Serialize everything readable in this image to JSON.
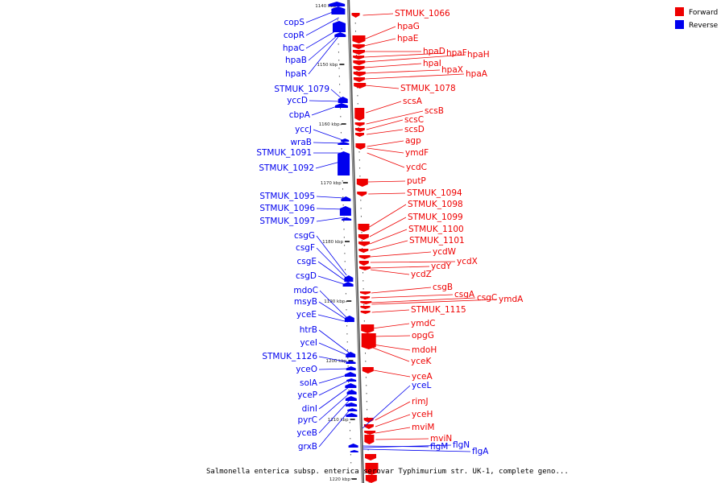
{
  "caption": "Salmonella enterica subsp. enterica serovar Typhimurium str. UK-1, complete geno...",
  "colors": {
    "forward": "#ee0000",
    "reverse": "#0000ee",
    "axis": "#888888"
  },
  "legend": [
    {
      "key": "forward",
      "label": "Forward"
    },
    {
      "key": "reverse",
      "label": "Reverse"
    }
  ],
  "kbp_ticks": [
    "1140 kbp",
    "1150 kbp",
    "1160 kbp",
    "1170 kbp",
    "1180 kbp",
    "1190 kbp",
    "1200 kbp",
    "1210 kbp",
    "1220 kbp"
  ],
  "reverse_genes": [
    "copS",
    "copR",
    "hpaC",
    "hpaB",
    "hpaR",
    "STMUK_1079",
    "yccD",
    "cbpA",
    "yccJ",
    "wraB",
    "STMUK_1091",
    "STMUK_1092",
    "STMUK_1095",
    "STMUK_1096",
    "STMUK_1097",
    "csgG",
    "csgF",
    "csgE",
    "csgD",
    "mdoC",
    "msyB",
    "yceE",
    "htrB",
    "yceI",
    "STMUK_1126",
    "yceO",
    "solA",
    "yceP",
    "dinI",
    "pyrC",
    "yceB",
    "grxB",
    "yceL",
    "flgM",
    "flgN",
    "flgA"
  ],
  "forward_genes": [
    "STMUK_1066",
    "hpaG",
    "hpaE",
    "hpaD",
    "hpaF",
    "hpaH",
    "hpaI",
    "hpaX",
    "hpaA",
    "STMUK_1078",
    "scsA",
    "scsB",
    "scsC",
    "scsD",
    "agp",
    "ymdF",
    "ycdC",
    "putP",
    "STMUK_1094",
    "STMUK_1098",
    "STMUK_1099",
    "STMUK_1100",
    "STMUK_1101",
    "ycdW",
    "ycdX",
    "ycdY",
    "ycdZ",
    "csgB",
    "csgA",
    "csgC",
    "ymdA",
    "STMUK_1115",
    "ymdC",
    "opgG",
    "mdoH",
    "yceK",
    "yceA",
    "rimJ",
    "yceH",
    "mviM",
    "mviN"
  ]
}
